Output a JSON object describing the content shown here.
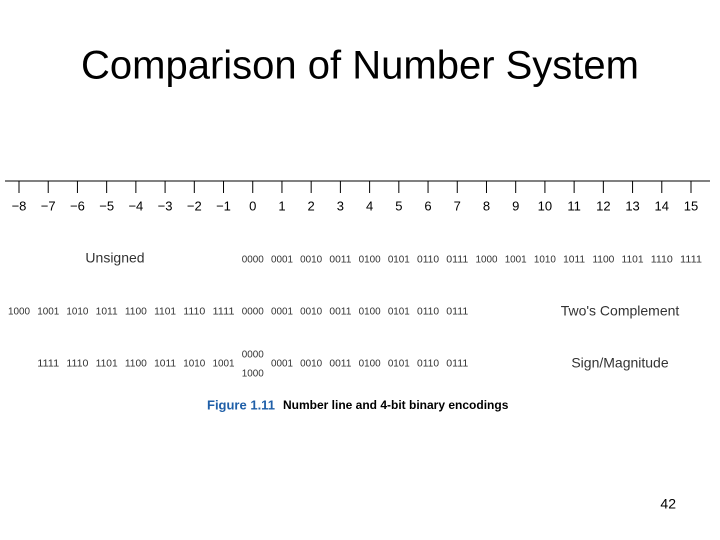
{
  "title": "Comparison of Number System",
  "number_line": {
    "labels": [
      "−8",
      "−7",
      "−6",
      "−5",
      "−4",
      "−3",
      "−2",
      "−1",
      "0",
      "1",
      "2",
      "3",
      "4",
      "5",
      "6",
      "7",
      "8",
      "9",
      "10",
      "11",
      "12",
      "13",
      "14",
      "15"
    ]
  },
  "unsigned": {
    "label": "Unsigned",
    "codes": [
      "0000",
      "0001",
      "0010",
      "0011",
      "0100",
      "0101",
      "0110",
      "0111",
      "1000",
      "1001",
      "1010",
      "1011",
      "1100",
      "1101",
      "1110",
      "1111"
    ]
  },
  "twos_complement": {
    "label": "Two's Complement",
    "codes": [
      "1000",
      "1001",
      "1010",
      "1011",
      "1100",
      "1101",
      "1110",
      "1111",
      "0000",
      "0001",
      "0010",
      "0011",
      "0100",
      "0101",
      "0110",
      "0111"
    ]
  },
  "sign_magnitude": {
    "label": "Sign/Magnitude",
    "codes": [
      "1111",
      "1110",
      "1101",
      "1100",
      "1011",
      "1010",
      "1001",
      [
        "0000",
        "1000"
      ],
      "0001",
      "0010",
      "0011",
      "0100",
      "0101",
      "0110",
      "0111"
    ]
  },
  "caption": {
    "figure": "Figure 1.11",
    "text": "Number line and 4-bit binary encodings"
  },
  "page_number": "42"
}
